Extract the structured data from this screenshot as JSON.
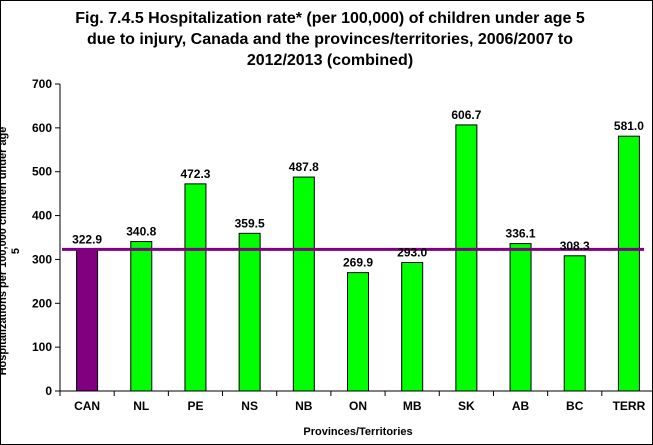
{
  "chart_data": {
    "type": "bar",
    "title_lines": [
      "Fig. 7.4.5 Hospitalization rate* (per 100,000) of children under age 5",
      "due to injury, Canada and the provinces/territories, 2006/2007 to",
      "2012/2013 (combined)"
    ],
    "xlabel": "Provinces/Territories",
    "ylabel": "Hospitalizations per 100,000 children under age 5",
    "categories": [
      "CAN",
      "NL",
      "PE",
      "NS",
      "NB",
      "ON",
      "MB",
      "SK",
      "AB",
      "BC",
      "TERR"
    ],
    "values": [
      322.9,
      340.8,
      472.3,
      359.5,
      487.8,
      269.9,
      293.0,
      606.7,
      336.1,
      308.3,
      581.0
    ],
    "data_labels": [
      "322.9",
      "340.8",
      "472.3",
      "359.5",
      "487.8",
      "269.9",
      "293.0",
      "606.7",
      "336.1",
      "308.3",
      "581.0"
    ],
    "ylim": [
      0,
      700
    ],
    "yticks": [
      0,
      100,
      200,
      300,
      400,
      500,
      600,
      700
    ],
    "reference_line": 322.9,
    "colors": {
      "highlight_bar": "#800080",
      "bar": "#00ff00",
      "reference_line": "#800080",
      "bar_border": "#000000"
    },
    "highlight_category": "CAN",
    "grid": false,
    "legend": "none"
  }
}
